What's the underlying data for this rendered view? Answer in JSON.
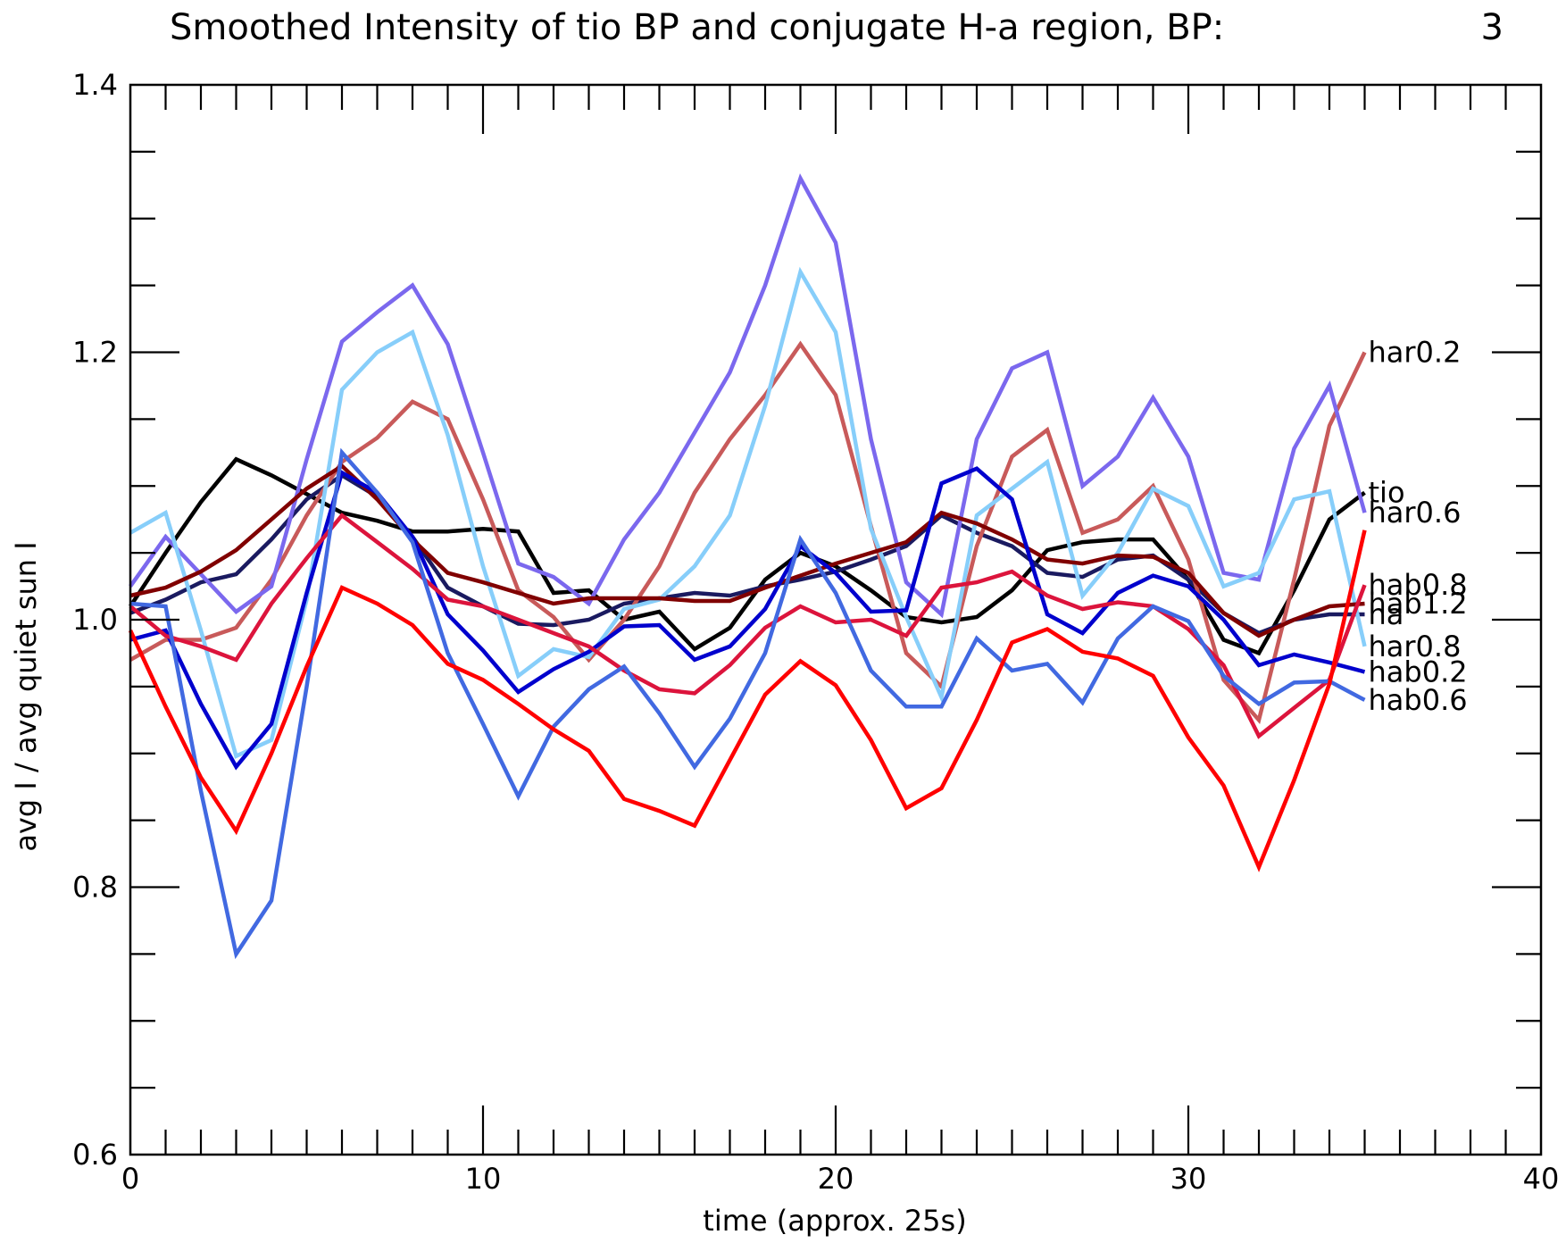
{
  "chart_data": {
    "type": "line",
    "title": "Smoothed Intensity of tio BP and conjugate H-a region, BP:",
    "title_value": "3",
    "xlabel": "time (approx. 25s)",
    "ylabel": "avg I / avg quiet sun I",
    "xlim": [
      0,
      40
    ],
    "ylim": [
      0.6,
      1.4
    ],
    "xticks": [
      0,
      10,
      20,
      30,
      40
    ],
    "xtick_labels": [
      "0",
      "10",
      "20",
      "30",
      "40"
    ],
    "yticks": [
      0.6,
      0.8,
      1.0,
      1.2,
      1.4
    ],
    "ytick_labels": [
      "0.6",
      "0.8",
      "1.0",
      "1.2",
      "1.4"
    ],
    "grid": false,
    "legend": "inline labels at right end of lines",
    "series": [
      {
        "name": "tio",
        "color": "#000000",
        "x": [
          0,
          1,
          2,
          3,
          4,
          5,
          6,
          7,
          8,
          9,
          10,
          11,
          12,
          13,
          14,
          15,
          16,
          17,
          18,
          19,
          20,
          21,
          22,
          23,
          24,
          25,
          26,
          27,
          28,
          29,
          30,
          31,
          32,
          33,
          34,
          35
        ],
        "values": [
          1.01,
          1.05,
          1.088,
          1.12,
          1.108,
          1.094,
          1.08,
          1.074,
          1.066,
          1.066,
          1.068,
          1.066,
          1.02,
          1.022,
          1.0,
          1.006,
          0.978,
          0.994,
          1.03,
          1.05,
          1.04,
          1.022,
          1.002,
          0.998,
          1.002,
          1.022,
          1.052,
          1.058,
          1.06,
          1.06,
          1.03,
          0.985,
          0.975,
          1.022,
          1.075,
          1.095
        ]
      },
      {
        "name": "ha",
        "color": "#1a1a60",
        "x": [
          0,
          1,
          2,
          3,
          4,
          5,
          6,
          7,
          8,
          9,
          10,
          11,
          12,
          13,
          14,
          15,
          16,
          17,
          18,
          19,
          20,
          21,
          22,
          23,
          24,
          25,
          26,
          27,
          28,
          29,
          30,
          31,
          32,
          33,
          34,
          35
        ],
        "values": [
          1.005,
          1.015,
          1.028,
          1.034,
          1.06,
          1.09,
          1.108,
          1.092,
          1.062,
          1.024,
          1.01,
          0.997,
          0.996,
          1.0,
          1.012,
          1.016,
          1.02,
          1.018,
          1.025,
          1.03,
          1.036,
          1.045,
          1.055,
          1.078,
          1.065,
          1.055,
          1.035,
          1.032,
          1.045,
          1.048,
          1.03,
          1.005,
          0.99,
          1.0,
          1.004,
          1.004
        ]
      },
      {
        "name": "har0.2",
        "color": "#c85a5a",
        "x": [
          0,
          1,
          2,
          3,
          4,
          5,
          6,
          7,
          8,
          9,
          10,
          11,
          12,
          13,
          14,
          15,
          16,
          17,
          18,
          19,
          20,
          21,
          22,
          23,
          24,
          25,
          26,
          27,
          28,
          29,
          30,
          31,
          32,
          33,
          34,
          35
        ],
        "values": [
          0.97,
          0.985,
          0.985,
          0.994,
          1.03,
          1.078,
          1.118,
          1.136,
          1.163,
          1.15,
          1.09,
          1.022,
          1.002,
          0.97,
          1.0,
          1.04,
          1.095,
          1.135,
          1.168,
          1.206,
          1.168,
          1.07,
          0.975,
          0.95,
          1.055,
          1.122,
          1.142,
          1.065,
          1.075,
          1.1,
          1.045,
          0.955,
          0.925,
          1.03,
          1.145,
          1.2
        ]
      },
      {
        "name": "har0.6",
        "color": "#7b68ee",
        "x": [
          0,
          1,
          2,
          3,
          4,
          5,
          6,
          7,
          8,
          9,
          10,
          11,
          12,
          13,
          14,
          15,
          16,
          17,
          18,
          19,
          20,
          21,
          22,
          23,
          24,
          25,
          26,
          27,
          28,
          29,
          30,
          31,
          32,
          33,
          34,
          35
        ],
        "values": [
          1.025,
          1.062,
          1.034,
          1.006,
          1.025,
          1.12,
          1.208,
          1.23,
          1.25,
          1.206,
          1.125,
          1.042,
          1.032,
          1.012,
          1.06,
          1.095,
          1.14,
          1.185,
          1.25,
          1.33,
          1.282,
          1.135,
          1.028,
          1.004,
          1.135,
          1.188,
          1.2,
          1.1,
          1.122,
          1.166,
          1.122,
          1.035,
          1.03,
          1.128,
          1.175,
          1.08
        ]
      },
      {
        "name": "har0.8",
        "color": "#87cefa",
        "x": [
          0,
          1,
          2,
          3,
          4,
          5,
          6,
          7,
          8,
          9,
          10,
          11,
          12,
          13,
          14,
          15,
          16,
          17,
          18,
          19,
          20,
          21,
          22,
          23,
          24,
          25,
          26,
          27,
          28,
          29,
          30,
          31,
          32,
          33,
          34,
          35
        ],
        "values": [
          1.065,
          1.08,
          0.992,
          0.898,
          0.91,
          1.015,
          1.172,
          1.2,
          1.215,
          1.138,
          1.04,
          0.958,
          0.978,
          0.972,
          1.008,
          1.015,
          1.04,
          1.078,
          1.16,
          1.26,
          1.215,
          1.068,
          1.002,
          0.942,
          1.078,
          1.098,
          1.118,
          1.018,
          1.05,
          1.098,
          1.085,
          1.025,
          1.035,
          1.09,
          1.096,
          0.98
        ]
      },
      {
        "name": "hab1.2",
        "color": "#800000",
        "x": [
          0,
          1,
          2,
          3,
          4,
          5,
          6,
          7,
          8,
          9,
          10,
          11,
          12,
          13,
          14,
          15,
          16,
          17,
          18,
          19,
          20,
          21,
          22,
          23,
          24,
          25,
          26,
          27,
          28,
          29,
          30,
          31,
          32,
          33,
          34,
          35
        ],
        "values": [
          1.018,
          1.024,
          1.036,
          1.052,
          1.075,
          1.098,
          1.115,
          1.09,
          1.06,
          1.035,
          1.028,
          1.02,
          1.012,
          1.016,
          1.016,
          1.016,
          1.014,
          1.014,
          1.024,
          1.033,
          1.042,
          1.05,
          1.058,
          1.08,
          1.072,
          1.06,
          1.045,
          1.042,
          1.048,
          1.047,
          1.035,
          1.005,
          0.988,
          1.0,
          1.01,
          1.012
        ]
      },
      {
        "name": "hab0.2",
        "color": "#0000cd",
        "x": [
          0,
          1,
          2,
          3,
          4,
          5,
          6,
          7,
          8,
          9,
          10,
          11,
          12,
          13,
          14,
          15,
          16,
          17,
          18,
          19,
          20,
          21,
          22,
          23,
          24,
          25,
          26,
          27,
          28,
          29,
          30,
          31,
          32,
          33,
          34,
          35
        ],
        "values": [
          0.985,
          0.992,
          0.937,
          0.89,
          0.922,
          1.02,
          1.11,
          1.095,
          1.062,
          1.004,
          0.977,
          0.946,
          0.963,
          0.976,
          0.995,
          0.996,
          0.97,
          0.98,
          1.008,
          1.055,
          1.035,
          1.006,
          1.007,
          1.102,
          1.113,
          1.09,
          1.004,
          0.99,
          1.02,
          1.033,
          1.025,
          1.0,
          0.966,
          0.974,
          0.968,
          0.961
        ]
      },
      {
        "name": "hab0.8",
        "color": "#dc143c",
        "x": [
          0,
          1,
          2,
          3,
          4,
          5,
          6,
          7,
          8,
          9,
          10,
          11,
          12,
          13,
          14,
          15,
          16,
          17,
          18,
          19,
          20,
          21,
          22,
          23,
          24,
          25,
          26,
          27,
          28,
          29,
          30,
          31,
          32,
          33,
          34,
          35
        ],
        "values": [
          1.01,
          0.988,
          0.98,
          0.97,
          1.012,
          1.046,
          1.078,
          1.058,
          1.038,
          1.015,
          1.01,
          1.0,
          0.99,
          0.98,
          0.962,
          0.948,
          0.945,
          0.966,
          0.994,
          1.01,
          0.998,
          1.0,
          0.988,
          1.024,
          1.028,
          1.036,
          1.018,
          1.008,
          1.013,
          1.01,
          0.993,
          0.966,
          0.913,
          0.934,
          0.955,
          1.026
        ]
      },
      {
        "name": "hab0.6",
        "color": "#4169e1",
        "x": [
          0,
          1,
          2,
          3,
          4,
          5,
          6,
          7,
          8,
          9,
          10,
          11,
          12,
          13,
          14,
          15,
          16,
          17,
          18,
          19,
          20,
          21,
          22,
          23,
          24,
          25,
          26,
          27,
          28,
          29,
          30,
          31,
          32,
          33,
          34,
          35
        ],
        "values": [
          1.012,
          1.01,
          0.872,
          0.75,
          0.79,
          0.95,
          1.125,
          1.095,
          1.058,
          0.975,
          0.922,
          0.868,
          0.92,
          0.948,
          0.965,
          0.93,
          0.89,
          0.926,
          0.975,
          1.06,
          1.02,
          0.962,
          0.935,
          0.935,
          0.986,
          0.962,
          0.967,
          0.938,
          0.986,
          1.01,
          0.999,
          0.958,
          0.937,
          0.953,
          0.954,
          0.94
        ]
      },
      {
        "name": "",
        "color": "#ff0000",
        "x": [
          0,
          1,
          2,
          3,
          4,
          5,
          6,
          7,
          8,
          9,
          10,
          11,
          12,
          13,
          14,
          15,
          16,
          17,
          18,
          19,
          20,
          21,
          22,
          23,
          24,
          25,
          26,
          27,
          28,
          29,
          30,
          31,
          32,
          33,
          34,
          35
        ],
        "values": [
          0.992,
          0.935,
          0.882,
          0.842,
          0.9,
          0.965,
          1.024,
          1.012,
          0.996,
          0.967,
          0.955,
          0.937,
          0.918,
          0.902,
          0.866,
          0.857,
          0.846,
          0.895,
          0.944,
          0.969,
          0.951,
          0.91,
          0.859,
          0.874,
          0.925,
          0.983,
          0.993,
          0.976,
          0.971,
          0.958,
          0.912,
          0.876,
          0.815,
          0.88,
          0.952,
          1.067
        ]
      }
    ],
    "line_labels": [
      {
        "text": "har0.2",
        "series": "har0.2"
      },
      {
        "text": "tio",
        "series": "tio"
      },
      {
        "text": "ha",
        "series": "ha"
      },
      {
        "text": "har0.6",
        "series": "har0.6"
      },
      {
        "text": "har0.8",
        "series": "har0.8"
      },
      {
        "text": "hab1.2",
        "series": "hab1.2"
      },
      {
        "text": "hab0.2",
        "series": "hab0.2"
      },
      {
        "text": "hab0.8",
        "series": "hab0.8"
      },
      {
        "text": "hab0.6",
        "series": "hab0.6"
      }
    ]
  }
}
